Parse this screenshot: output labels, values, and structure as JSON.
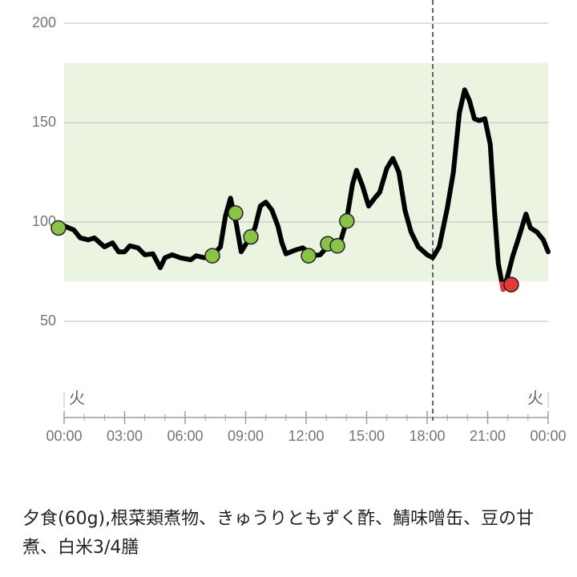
{
  "chart_data": {
    "type": "line",
    "x": [
      0,
      0.48,
      0.8,
      1.2,
      1.5,
      2.0,
      2.4,
      2.7,
      3.0,
      3.26,
      3.66,
      4.0,
      4.4,
      4.77,
      5.0,
      5.36,
      5.76,
      6.28,
      6.55,
      6.95,
      7.35,
      7.75,
      8.0,
      8.25,
      8.54,
      8.78,
      9.14,
      9.46,
      9.73,
      10.0,
      10.3,
      10.6,
      10.8,
      11.0,
      11.5,
      11.84,
      12.3,
      12.7,
      13.0,
      13.4,
      13.7,
      14.0,
      14.3,
      14.5,
      14.8,
      15.1,
      15.4,
      15.65,
      16.0,
      16.3,
      16.6,
      16.9,
      17.2,
      17.56,
      18.0,
      18.28,
      18.6,
      19.0,
      19.3,
      19.6,
      19.86,
      20.1,
      20.34,
      20.58,
      20.86,
      21.13,
      21.33,
      21.53,
      21.77,
      21.97,
      22.25,
      22.57,
      22.9,
      23.12,
      23.44,
      23.76,
      24.0
    ],
    "series": [
      {
        "color": "#000000",
        "values": [
          98,
          96,
          92,
          91,
          92,
          87.5,
          89.5,
          85,
          85,
          88,
          87,
          83.5,
          84,
          77,
          82,
          83.5,
          82,
          81,
          83,
          82,
          83,
          87.5,
          103,
          112,
          99,
          85,
          91,
          97,
          108,
          110,
          106,
          98,
          89.5,
          84,
          86,
          87,
          83,
          83.5,
          87,
          89,
          90,
          100.5,
          119,
          126,
          118,
          108,
          112,
          115,
          127,
          132,
          125,
          106,
          95,
          87.5,
          83.5,
          82,
          87.5,
          107,
          125,
          155,
          166.5,
          161,
          152,
          151,
          152,
          139,
          107,
          79,
          66,
          72,
          83,
          93,
          104,
          97,
          95,
          91,
          85
        ]
      }
    ],
    "low_color": "#e53935",
    "meal_markers": {
      "color": "#8bc34a",
      "x": [
        -0.28,
        7.35,
        8.5,
        9.26,
        12.12,
        13.07,
        13.55,
        14.02
      ],
      "values": [
        97,
        83,
        104.5,
        92.5,
        83,
        89,
        88,
        100.5
      ]
    },
    "low_markers": {
      "color": "#e53935",
      "x": [
        22.17
      ],
      "values": [
        68.5
      ]
    },
    "target_range": [
      70,
      180
    ],
    "target_color": "#eaf4e1",
    "marker_x": 18.28,
    "xlim": [
      0,
      24
    ],
    "xticks": [
      {
        "value": 0,
        "label": "00:00"
      },
      {
        "value": 3,
        "label": "03:00"
      },
      {
        "value": 6,
        "label": "06:00"
      },
      {
        "value": 9,
        "label": "09:00"
      },
      {
        "value": 12,
        "label": "12:00"
      },
      {
        "value": 15,
        "label": "15:00"
      },
      {
        "value": 18,
        "label": "18:00"
      },
      {
        "value": 21,
        "label": "21:00"
      },
      {
        "value": 24,
        "label": "00:00"
      }
    ],
    "x_day_labels": [
      {
        "value": 0,
        "label": "火"
      },
      {
        "value": 24,
        "label": "火"
      }
    ],
    "ylim": [
      0,
      200
    ],
    "yticks": [
      50,
      100,
      150,
      200
    ],
    "grid": true
  },
  "caption": "夕食(60g),根菜類煮物、きゅうりともずく酢、鯖味噌缶、豆の甘煮、白米3/4膳"
}
